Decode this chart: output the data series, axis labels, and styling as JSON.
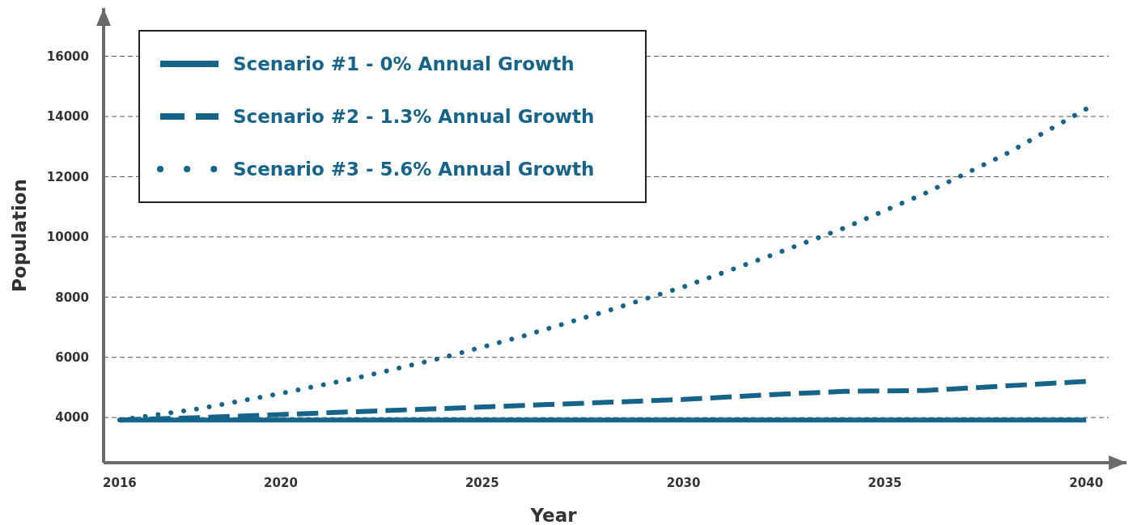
{
  "chart_data": {
    "type": "line",
    "xlabel": "Year",
    "ylabel": "Population",
    "xlim": [
      2015.6,
      2041
    ],
    "xticks": [
      2016,
      2020,
      2025,
      2030,
      2035,
      2040
    ],
    "ylim": [
      2500,
      17600
    ],
    "yticks": [
      4000,
      6000,
      8000,
      10000,
      12000,
      14000,
      16000
    ],
    "grid": "y",
    "legend": "top left",
    "marker": "none",
    "series": [
      {
        "name": "Scenario #1 - 0% Annual Growth",
        "color": "#17648a",
        "line_style": "solid",
        "x": [
          2016,
          2040
        ],
        "values": [
          3920,
          3920
        ]
      },
      {
        "name": "Scenario #2 - 1.3% Annual Growth",
        "color": "#17648a",
        "line_style": "dashed",
        "x": [
          2016,
          2018,
          2020,
          2022,
          2024,
          2026,
          2028,
          2030,
          2032,
          2034,
          2036,
          2038,
          2040
        ],
        "values": [
          3920,
          4000,
          4100,
          4200,
          4300,
          4400,
          4500,
          4600,
          4750,
          4870,
          4900,
          5050,
          5200
        ]
      },
      {
        "name": "Scenario #3 - 5.6% Annual Growth",
        "color": "#17648a",
        "line_style": "dotted",
        "x": [
          2016,
          2018,
          2020,
          2022,
          2024,
          2026,
          2028,
          2030,
          2032,
          2034,
          2036,
          2038,
          2040
        ],
        "values": [
          3920,
          4300,
          4800,
          5350,
          5980,
          6700,
          7500,
          8340,
          9300,
          10300,
          11450,
          12750,
          14250
        ]
      }
    ]
  }
}
